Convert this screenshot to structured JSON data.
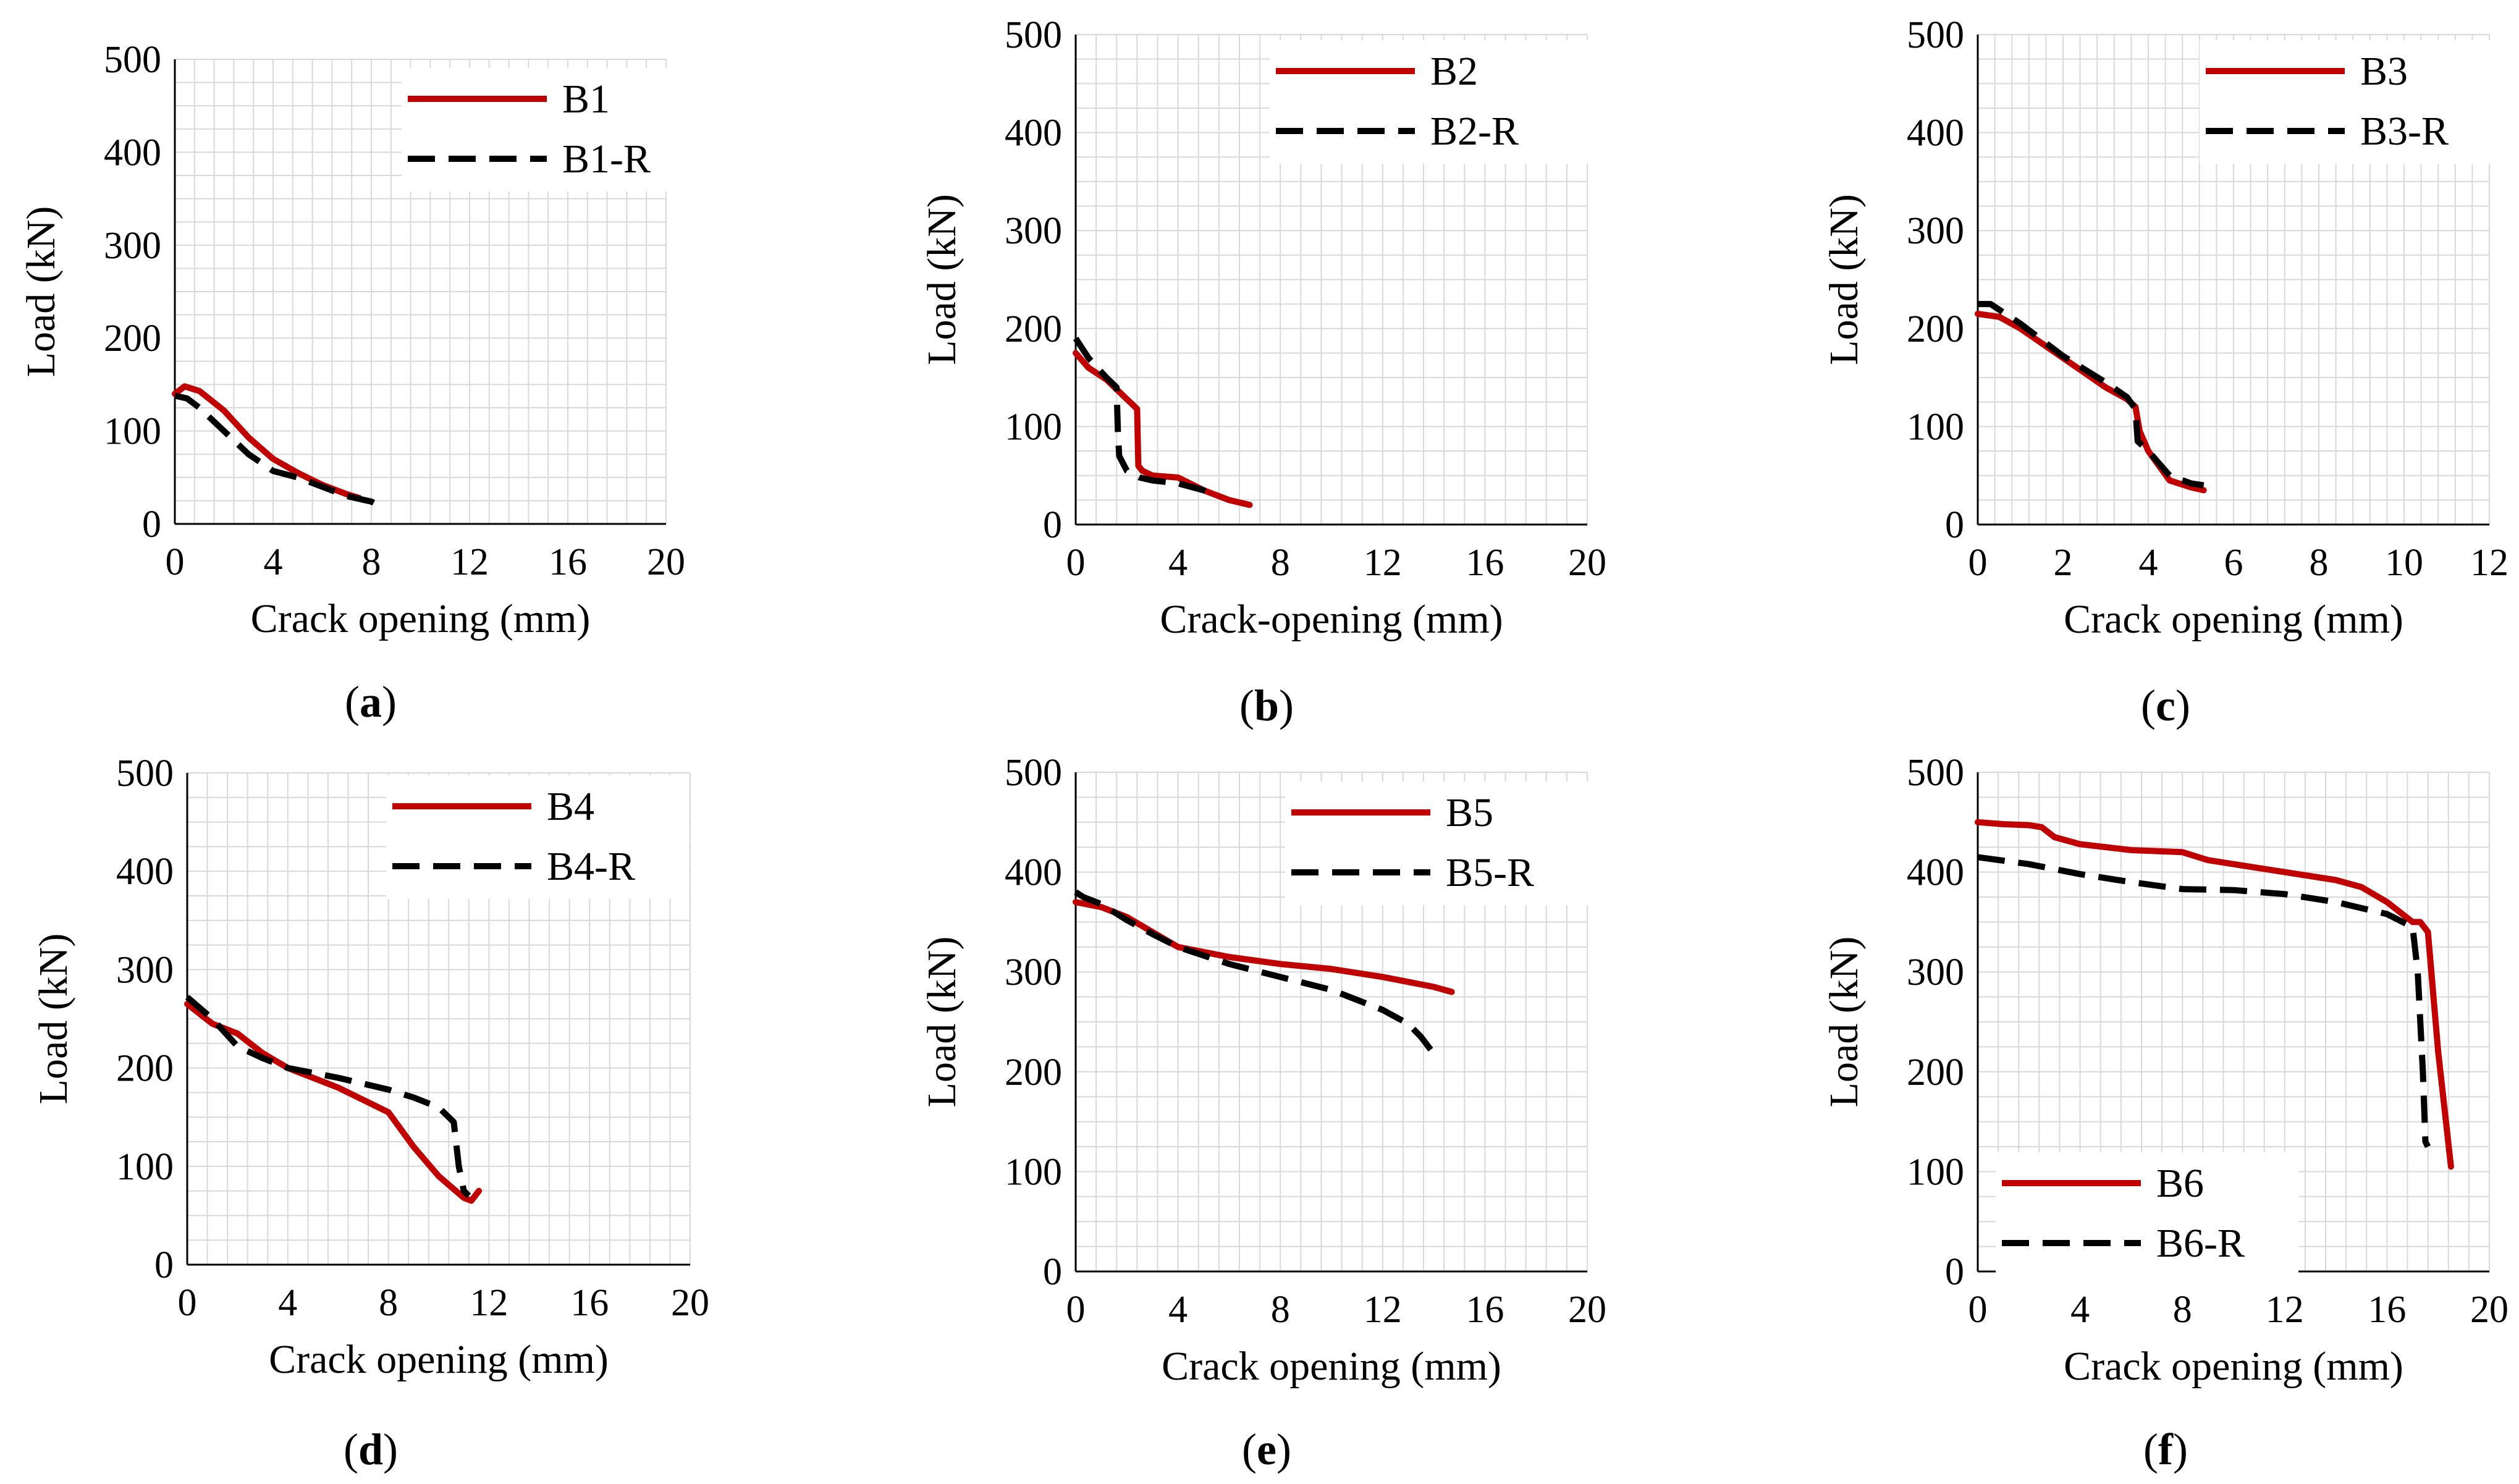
{
  "figure": {
    "colors": {
      "red": "#C00000",
      "black": "#000000",
      "grid": "#D9D9D9"
    },
    "panels": [
      {
        "label": "a"
      },
      {
        "label": "b"
      },
      {
        "label": "c"
      },
      {
        "label": "d"
      },
      {
        "label": "e"
      },
      {
        "label": "f"
      }
    ]
  },
  "chart_data": [
    {
      "type": "line",
      "panel": "a",
      "xlabel": "Crack opening (mm)",
      "ylabel": "Load (kN)",
      "xlim": [
        0,
        20
      ],
      "ylim": [
        0,
        500
      ],
      "xticks": [
        0,
        4,
        8,
        12,
        16,
        20
      ],
      "yticks": [
        0,
        100,
        200,
        300,
        400,
        500
      ],
      "legend": "top-right",
      "series": [
        {
          "name": "B1",
          "color": "#C00000",
          "dash": false,
          "x": [
            0,
            0.4,
            1,
            2,
            3,
            4,
            5,
            6,
            7,
            7.5
          ],
          "y": [
            140,
            148,
            143,
            122,
            93,
            70,
            55,
            42,
            32,
            28
          ]
        },
        {
          "name": "B1-R",
          "color": "#000000",
          "dash": true,
          "x": [
            0,
            0.5,
            1,
            2,
            3,
            4,
            5,
            6,
            7,
            8,
            8.3
          ],
          "y": [
            138,
            135,
            125,
            100,
            75,
            57,
            50,
            40,
            30,
            24,
            20
          ]
        }
      ]
    },
    {
      "type": "line",
      "panel": "b",
      "xlabel": "Crack-opening (mm)",
      "ylabel": "Load (kN)",
      "xlim": [
        0,
        20
      ],
      "ylim": [
        0,
        500
      ],
      "xticks": [
        0,
        4,
        8,
        12,
        16,
        20
      ],
      "yticks": [
        0,
        100,
        200,
        300,
        400,
        500
      ],
      "legend": "top-right",
      "series": [
        {
          "name": "B2",
          "color": "#C00000",
          "dash": false,
          "x": [
            0,
            0.5,
            1.2,
            2,
            2.4,
            2.45,
            2.6,
            3,
            4,
            5,
            6,
            6.8
          ],
          "y": [
            175,
            160,
            148,
            128,
            118,
            60,
            55,
            50,
            48,
            35,
            25,
            20
          ]
        },
        {
          "name": "B2-R",
          "color": "#000000",
          "dash": true,
          "x": [
            0,
            0.5,
            1.2,
            1.6,
            1.65,
            1.7,
            2,
            2.5,
            3,
            4,
            5,
            5.5
          ],
          "y": [
            190,
            170,
            150,
            140,
            95,
            70,
            55,
            48,
            45,
            42,
            35,
            30
          ]
        }
      ]
    },
    {
      "type": "line",
      "panel": "c",
      "xlabel": "Crack opening (mm)",
      "ylabel": "Load (kN)",
      "xlim": [
        0,
        12
      ],
      "ylim": [
        0,
        500
      ],
      "xticks": [
        0,
        2,
        4,
        6,
        8,
        10,
        12
      ],
      "yticks": [
        0,
        100,
        200,
        300,
        400,
        500
      ],
      "legend": "top-right",
      "series": [
        {
          "name": "B3",
          "color": "#C00000",
          "dash": false,
          "x": [
            0,
            0.5,
            1,
            2,
            3,
            3.5,
            3.7,
            3.8,
            4,
            4.5,
            5,
            5.3
          ],
          "y": [
            215,
            212,
            200,
            170,
            140,
            128,
            120,
            95,
            75,
            45,
            38,
            35
          ]
        },
        {
          "name": "B3-R",
          "color": "#000000",
          "dash": true,
          "x": [
            0,
            0.3,
            1,
            2,
            3,
            3.5,
            3.7,
            3.75,
            4,
            4.5,
            5,
            5.3
          ],
          "y": [
            225,
            225,
            205,
            172,
            145,
            130,
            118,
            85,
            75,
            50,
            42,
            40
          ]
        }
      ]
    },
    {
      "type": "line",
      "panel": "d",
      "xlabel": "Crack opening (mm)",
      "ylabel": "Load (kN)",
      "xlim": [
        0,
        20
      ],
      "ylim": [
        0,
        500
      ],
      "xticks": [
        0,
        4,
        8,
        12,
        16,
        20
      ],
      "yticks": [
        0,
        100,
        200,
        300,
        400,
        500
      ],
      "legend": "top-right",
      "series": [
        {
          "name": "B4",
          "color": "#C00000",
          "dash": false,
          "x": [
            0,
            1,
            2,
            3,
            4,
            6,
            8,
            9,
            10,
            11,
            11.3,
            11.6
          ],
          "y": [
            265,
            245,
            235,
            215,
            200,
            180,
            155,
            120,
            90,
            68,
            65,
            75
          ]
        },
        {
          "name": "B4-R",
          "color": "#000000",
          "dash": true,
          "x": [
            0,
            1,
            2,
            3,
            4,
            6,
            8,
            9,
            10,
            10.6,
            10.8,
            11,
            11.2
          ],
          "y": [
            272,
            250,
            222,
            210,
            200,
            190,
            178,
            170,
            160,
            145,
            100,
            75,
            70
          ]
        }
      ]
    },
    {
      "type": "line",
      "panel": "e",
      "xlabel": "Crack opening (mm)",
      "ylabel": "Load (kN)",
      "xlim": [
        0,
        20
      ],
      "ylim": [
        0,
        500
      ],
      "xticks": [
        0,
        4,
        8,
        12,
        16,
        20
      ],
      "yticks": [
        0,
        100,
        200,
        300,
        400,
        500
      ],
      "legend": "top-right",
      "series": [
        {
          "name": "B5",
          "color": "#C00000",
          "dash": false,
          "x": [
            0,
            1,
            2,
            3,
            4,
            6,
            8,
            10,
            12,
            14,
            14.7
          ],
          "y": [
            370,
            365,
            355,
            340,
            325,
            315,
            308,
            303,
            295,
            285,
            280
          ]
        },
        {
          "name": "B5-R",
          "color": "#000000",
          "dash": true,
          "x": [
            0,
            0.3,
            1,
            2,
            3,
            4,
            6,
            8,
            10,
            12,
            13,
            13.5,
            14
          ],
          "y": [
            380,
            375,
            368,
            352,
            338,
            325,
            308,
            295,
            282,
            262,
            248,
            235,
            218
          ]
        }
      ]
    },
    {
      "type": "line",
      "panel": "f",
      "xlabel": "Crack opening (mm)",
      "ylabel": "Load (kN)",
      "xlim": [
        0,
        20
      ],
      "ylim": [
        0,
        500
      ],
      "xticks": [
        0,
        4,
        8,
        12,
        16,
        20
      ],
      "yticks": [
        0,
        100,
        200,
        300,
        400,
        500
      ],
      "legend": "bottom-left",
      "series": [
        {
          "name": "B6",
          "color": "#C00000",
          "dash": false,
          "x": [
            0,
            1,
            2,
            2.5,
            3,
            4,
            6,
            8,
            9,
            10,
            12,
            14,
            15,
            16,
            17,
            17.3,
            17.6,
            18,
            18.5
          ],
          "y": [
            450,
            448,
            447,
            445,
            435,
            428,
            422,
            420,
            412,
            408,
            400,
            392,
            385,
            370,
            350,
            350,
            340,
            220,
            105
          ]
        },
        {
          "name": "B6-R",
          "color": "#000000",
          "dash": true,
          "x": [
            0,
            2,
            4,
            6,
            8,
            10,
            12,
            14,
            16,
            17,
            17.2,
            17.4,
            17.5,
            17.6
          ],
          "y": [
            415,
            408,
            398,
            390,
            383,
            382,
            378,
            370,
            358,
            345,
            300,
            200,
            130,
            125
          ]
        }
      ]
    }
  ]
}
